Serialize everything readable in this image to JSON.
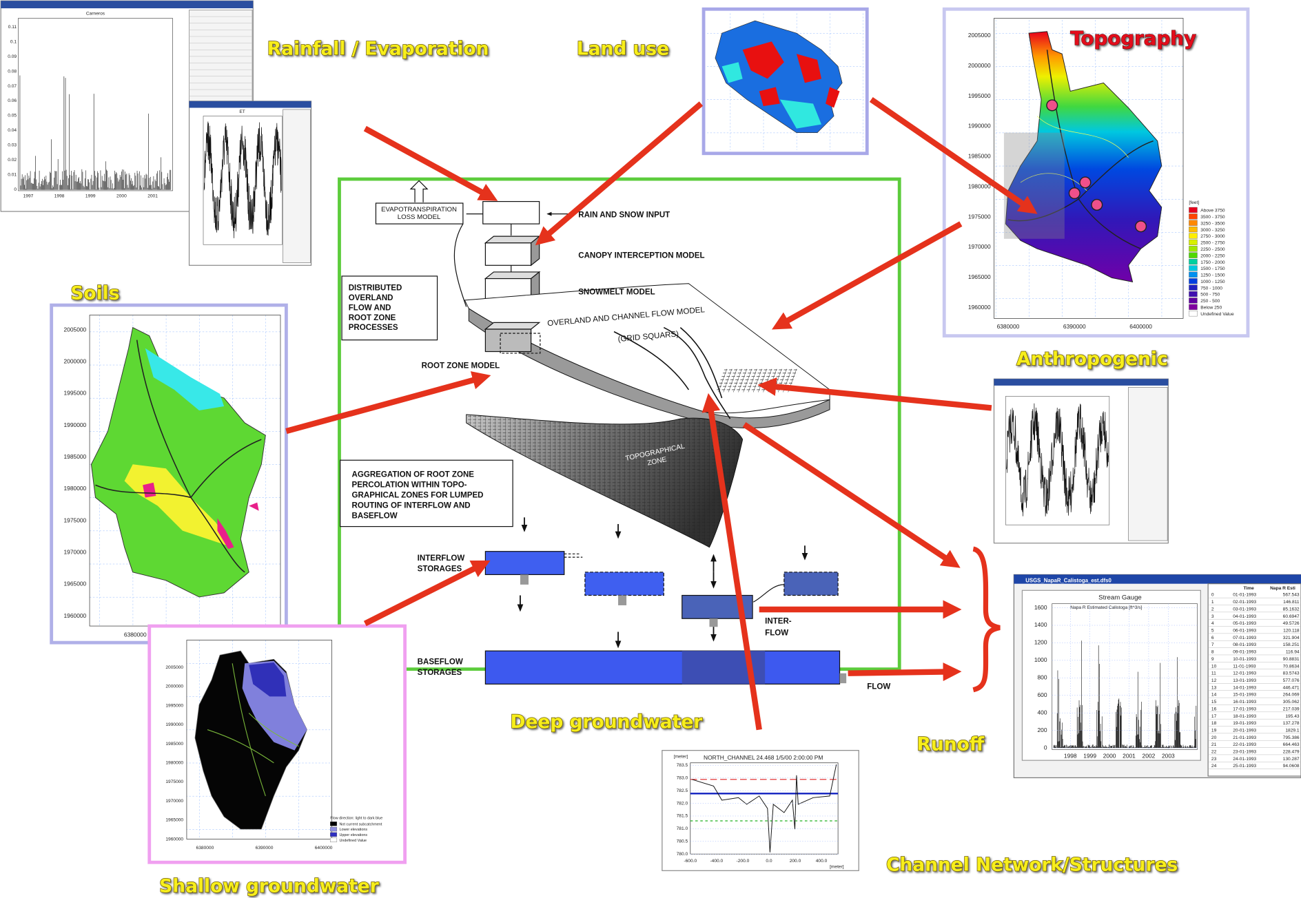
{
  "labels": {
    "rainfall": "Rainfall / Evaporation",
    "land_use": "Land use",
    "topography": "Topography",
    "soils": "Soils",
    "anthropogenic": "Anthropogenic",
    "deep_groundwater": "Deep groundwater",
    "runoff": "Runoff",
    "channel_network": "Channel Network/Structures",
    "shallow_groundwater": "Shallow groundwater"
  },
  "rainfall_window": {
    "chart_title": "Carneros",
    "y_ticks": [
      "0.11",
      "0.1",
      "0.09",
      "0.08",
      "0.07",
      "0.06",
      "0.05",
      "0.04",
      "0.03",
      "0.02",
      "0.01",
      "0"
    ],
    "x_ticks": [
      "1997",
      "1998",
      "1999",
      "2000",
      "2001"
    ]
  },
  "et_window": {
    "chart_title": "ET"
  },
  "diagram": {
    "et_box": [
      "EVAPOTRANSPIRATION",
      "LOSS MODEL"
    ],
    "rain": "RAIN AND SNOW INPUT",
    "canopy": "CANOPY INTERCEPTION MODEL",
    "snowmelt": "SNOWMELT MODEL",
    "distributed": [
      "DISTRIBUTED",
      "OVERLAND",
      "FLOW AND",
      "ROOT ZONE",
      "PROCESSES"
    ],
    "overland": "OVERLAND AND CHANNEL FLOW MODEL",
    "grid": "(GRID SQUARS)",
    "root_zone": "ROOT ZONE MODEL",
    "topo_zone": [
      "TOPOGRAPHICAL",
      "ZONE"
    ],
    "aggregation": [
      "AGGREGATION OF ROOT ZONE",
      "PERCOLATION WITHIN TOPO-",
      "GRAPHICAL ZONES FOR LUMPED",
      "ROUTING  OF INTERFLOW AND",
      "BASEFLOW"
    ],
    "interflow_storages": [
      "INTERFLOW",
      "STORAGES"
    ],
    "interflow": [
      "INTER-",
      "FLOW"
    ],
    "baseflow_storages": [
      "BASEFLOW",
      "STORAGES"
    ],
    "flow": "FLOW"
  },
  "topography_map": {
    "y_ticks": [
      "2005000",
      "2000000",
      "1995000",
      "1990000",
      "1985000",
      "1980000",
      "1975000",
      "1970000",
      "1965000",
      "1960000"
    ],
    "x_ticks": [
      "6380000",
      "6390000",
      "6400000"
    ],
    "legend_title": "[feet]",
    "legend": [
      {
        "label": "Above 3750",
        "color": "#e8001c"
      },
      {
        "label": "3500 - 3750",
        "color": "#ff4400"
      },
      {
        "label": "3250 - 3500",
        "color": "#ff8800"
      },
      {
        "label": "3000 - 3250",
        "color": "#ffbb00"
      },
      {
        "label": "2750 - 3000",
        "color": "#ffee00"
      },
      {
        "label": "2500 - 2750",
        "color": "#d8f000"
      },
      {
        "label": "2250 - 2500",
        "color": "#a0e800"
      },
      {
        "label": "2000 - 2250",
        "color": "#50d800"
      },
      {
        "label": "1750 - 2000",
        "color": "#00d0a0"
      },
      {
        "label": "1500 - 1750",
        "color": "#00c8e0"
      },
      {
        "label": "1250 - 1500",
        "color": "#0090f0"
      },
      {
        "label": "1000 - 1250",
        "color": "#0040e0"
      },
      {
        "label": "750 - 1000",
        "color": "#2020c0"
      },
      {
        "label": "500 -  750",
        "color": "#4010b0"
      },
      {
        "label": "250 -  500",
        "color": "#6000a0"
      },
      {
        "label": "Below  250",
        "color": "#8000a0"
      },
      {
        "label": "Undefined Value",
        "color": "#ffffff"
      }
    ]
  },
  "soils_map": {
    "y_ticks": [
      "2005000",
      "2000000",
      "1995000",
      "1990000",
      "1985000",
      "1980000",
      "1975000",
      "1970000",
      "1965000",
      "1960000"
    ],
    "x_ticks": [
      "6380000"
    ]
  },
  "shallow_map": {
    "y_ticks": [
      "2005000",
      "2000000",
      "1995000",
      "1990000",
      "1985000",
      "1980000",
      "1975000",
      "1970000",
      "1965000",
      "1960000"
    ],
    "x_ticks": [
      "6380000",
      "6390000",
      "6400000"
    ],
    "legend_title": "Flow direction: light to dark blue",
    "legend": [
      {
        "label": "Not current subcatchment",
        "color": "#000000"
      },
      {
        "label": "Lower elevations",
        "color": "#9090e0"
      },
      {
        "label": "Upper elevations",
        "color": "#3030c0"
      },
      {
        "label": "Undefined Value",
        "color": "#ffffff"
      }
    ]
  },
  "channel_plot": {
    "title": "NORTH_CHANNEL  24.468  1/5/00 2:00:00 PM",
    "y_unit": "[meter]",
    "x_unit": "[meter]",
    "y_ticks": [
      "783.5",
      "783.0",
      "782.5",
      "782.0",
      "781.5",
      "781.0",
      "780.5",
      "780.0"
    ],
    "x_ticks": [
      "-600.0",
      "-400.0",
      "-200.0",
      "0.0",
      "200.0",
      "400.0"
    ]
  },
  "stream_gauge": {
    "window_title": "USGS_NapaR_Calistoga_est.dfs0",
    "chart_title": "Stream Gauge",
    "legend": "Napa R Estimated Calistoga [ft^3/s]",
    "y_ticks": [
      "1600",
      "1400",
      "1200",
      "1000",
      "800",
      "600",
      "400",
      "200",
      "0"
    ],
    "x_ticks": [
      "1998",
      "1999",
      "2000",
      "2001",
      "2002",
      "2003"
    ],
    "table_header": [
      "Time",
      "Napa R Esti"
    ],
    "table_rows": [
      [
        0,
        "01-01-1993",
        567.543
      ],
      [
        1,
        "02-01-1993",
        146.811
      ],
      [
        2,
        "03-01-1993",
        85.1632
      ],
      [
        3,
        "04-01-1993",
        60.6947
      ],
      [
        4,
        "05-01-1993",
        49.5726
      ],
      [
        5,
        "06-01-1993",
        120.118
      ],
      [
        6,
        "07-01-1993",
        321.904
      ],
      [
        7,
        "08-01-1993",
        158.251
      ],
      [
        8,
        "09-01-1993",
        116.94
      ],
      [
        9,
        "10-01-1993",
        90.8831
      ],
      [
        10,
        "11-01-1993",
        70.8634
      ],
      [
        11,
        "12-01-1993",
        83.5743
      ],
      [
        12,
        "13-01-1993",
        577.076
      ],
      [
        13,
        "14-01-1993",
        446.471
      ],
      [
        14,
        "15-01-1993",
        264.069
      ],
      [
        15,
        "16-01-1993",
        305.062
      ],
      [
        16,
        "17-01-1993",
        217.039
      ],
      [
        17,
        "18-01-1993",
        195.43
      ],
      [
        18,
        "19-01-1993",
        137.278
      ],
      [
        19,
        "20-01-1993",
        1829.1
      ],
      [
        20,
        "21-01-1993",
        795.386
      ],
      [
        21,
        "22-01-1993",
        664.463
      ],
      [
        22,
        "23-01-1993",
        228.479
      ],
      [
        23,
        "24-01-1993",
        130.287
      ],
      [
        24,
        "25-01-1993",
        94.0608
      ]
    ]
  }
}
